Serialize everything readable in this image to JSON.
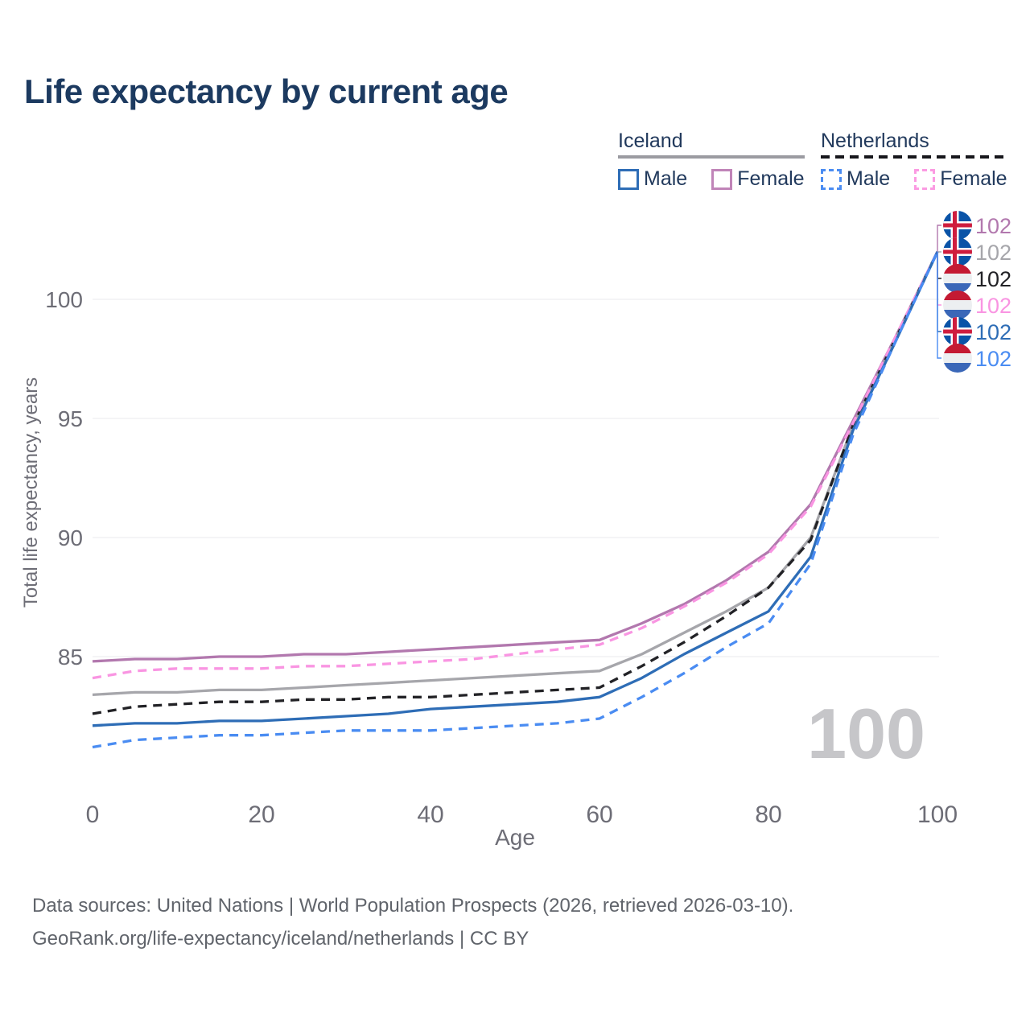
{
  "title": "Life expectancy by current age",
  "legend": {
    "groups": [
      {
        "label": "Iceland",
        "line_style": "solid",
        "items": [
          {
            "label": "Male",
            "color": "#2e6db6"
          },
          {
            "label": "Female",
            "color": "#c084b8"
          }
        ]
      },
      {
        "label": "Netherlands",
        "line_style": "dashed",
        "items": [
          {
            "label": "Male",
            "color": "#4a8cf2"
          },
          {
            "label": "Female",
            "color": "#fb9be2"
          }
        ]
      }
    ]
  },
  "watermark": "100",
  "footer": {
    "line1": "Data sources: United Nations | World Population Prospects (2026, retrieved 2026-03-10).",
    "line2": "GeoRank.org/life-expectancy/iceland/netherlands | CC BY"
  },
  "chart_data": {
    "type": "line",
    "title": "Life expectancy by current age",
    "xlabel": "Age",
    "ylabel": "Total life expectancy, years",
    "x": [
      0,
      5,
      10,
      15,
      20,
      25,
      30,
      35,
      40,
      45,
      50,
      55,
      60,
      65,
      70,
      75,
      80,
      85,
      90,
      95,
      100
    ],
    "xticks": [
      0,
      20,
      40,
      60,
      80,
      100
    ],
    "yticks": [
      85,
      90,
      95,
      100
    ],
    "xlim": [
      0,
      100
    ],
    "ylim": [
      81,
      102.5
    ],
    "grid": true,
    "legend_position": "top-right",
    "series": [
      {
        "name": "Iceland Female",
        "country": "iceland",
        "sex": "female",
        "color": "#b278ae",
        "dash": "solid",
        "end_label": "102",
        "values": [
          84.8,
          84.9,
          84.9,
          85.0,
          85.0,
          85.1,
          85.1,
          85.2,
          85.3,
          85.4,
          85.5,
          85.6,
          85.7,
          86.4,
          87.2,
          88.2,
          89.4,
          91.4,
          94.9,
          98.4,
          102.0
        ]
      },
      {
        "name": "Iceland Total",
        "country": "iceland",
        "sex": "both",
        "color": "#a6a6ab",
        "dash": "solid",
        "end_label": "102",
        "values": [
          83.4,
          83.5,
          83.5,
          83.6,
          83.6,
          83.7,
          83.8,
          83.9,
          84.0,
          84.1,
          84.2,
          84.3,
          84.4,
          85.1,
          86.0,
          86.9,
          87.9,
          90.0,
          94.7,
          98.3,
          102.0
        ]
      },
      {
        "name": "Netherlands Total",
        "country": "netherlands",
        "sex": "both",
        "color": "#222226",
        "dash": "dashed",
        "end_label": "102",
        "values": [
          82.6,
          82.9,
          83.0,
          83.1,
          83.1,
          83.2,
          83.2,
          83.3,
          83.3,
          83.4,
          83.5,
          83.6,
          83.7,
          84.6,
          85.6,
          86.7,
          87.9,
          89.9,
          94.7,
          98.3,
          102.0
        ]
      },
      {
        "name": "Netherlands Female",
        "country": "netherlands",
        "sex": "female",
        "color": "#f995e2",
        "dash": "dashed",
        "end_label": "102",
        "values": [
          84.1,
          84.4,
          84.5,
          84.5,
          84.5,
          84.6,
          84.6,
          84.7,
          84.8,
          84.9,
          85.1,
          85.3,
          85.5,
          86.2,
          87.1,
          88.1,
          89.3,
          91.3,
          94.8,
          98.4,
          102.0
        ]
      },
      {
        "name": "Iceland Male",
        "country": "iceland",
        "sex": "male",
        "color": "#2e6db6",
        "dash": "solid",
        "end_label": "102",
        "values": [
          82.1,
          82.2,
          82.2,
          82.3,
          82.3,
          82.4,
          82.5,
          82.6,
          82.8,
          82.9,
          83.0,
          83.1,
          83.3,
          84.1,
          85.1,
          86.0,
          86.9,
          89.2,
          94.5,
          98.2,
          102.0
        ]
      },
      {
        "name": "Netherlands Male",
        "country": "netherlands",
        "sex": "male",
        "color": "#4a8cf2",
        "dash": "dashed",
        "end_label": "102",
        "values": [
          81.2,
          81.5,
          81.6,
          81.7,
          81.7,
          81.8,
          81.9,
          81.9,
          81.9,
          82.0,
          82.1,
          82.2,
          82.4,
          83.3,
          84.3,
          85.4,
          86.4,
          88.9,
          94.3,
          98.2,
          102.0
        ]
      }
    ],
    "end_label_order": [
      "Iceland Female",
      "Iceland Total",
      "Netherlands Total",
      "Netherlands Female",
      "Iceland Male",
      "Netherlands Male"
    ]
  }
}
